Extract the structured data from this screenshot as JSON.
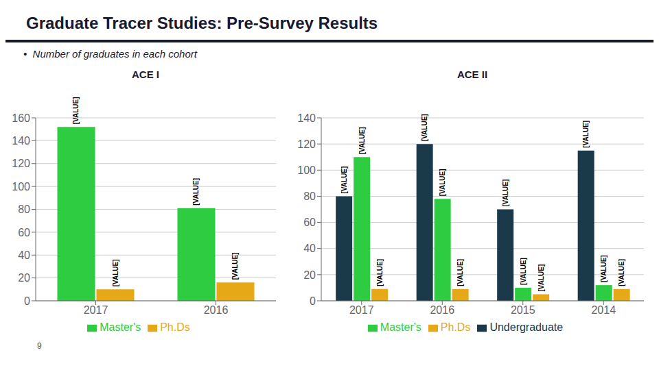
{
  "title": "Graduate Tracer Studies: Pre-Survey Results",
  "subtitle": "•  Number of graduates in each cohort",
  "annotations": [
    "9"
  ],
  "chart_data": [
    {
      "type": "bar",
      "title": "ACE I",
      "categories": [
        "2017",
        "2016"
      ],
      "series": [
        {
          "name": "Master's",
          "color": "#2ecc40",
          "values": [
            152,
            81
          ],
          "value_labels": [
            "[VALUE]",
            "[VALUE]"
          ]
        },
        {
          "name": "Ph.Ds",
          "color": "#e6a817",
          "values": [
            10,
            16
          ],
          "value_labels": [
            "[VALUE]",
            "[VALUE]"
          ]
        }
      ],
      "ylim": [
        0,
        160
      ],
      "yticks": [
        0,
        20,
        40,
        60,
        80,
        100,
        120,
        140,
        160
      ],
      "grid": true,
      "legend": "bottom",
      "data_labels": true
    },
    {
      "type": "bar",
      "title": "ACE II",
      "categories": [
        "2017",
        "2016",
        "2015",
        "2014"
      ],
      "series": [
        {
          "name": "Undergraduate",
          "color": "#1a3a4a",
          "values": [
            80,
            120,
            70,
            115
          ],
          "value_labels": [
            "[VALUE]",
            "[VALUE]",
            "[VALUE]",
            "[VALUE]"
          ]
        },
        {
          "name": "Master's",
          "color": "#2ecc40",
          "values": [
            110,
            78,
            10,
            12
          ],
          "value_labels": [
            "[VALUE]",
            "[VALUE]",
            "[VALUE]",
            "[VALUE]"
          ]
        },
        {
          "name": "Ph.Ds",
          "color": "#e6a817",
          "values": [
            9,
            9,
            5,
            9
          ],
          "value_labels": [
            "[VALUE]",
            "[VALUE]",
            "[VALUE]",
            "[VALUE]"
          ]
        }
      ],
      "ylim": [
        0,
        140
      ],
      "yticks": [
        0,
        20,
        40,
        60,
        80,
        100,
        120,
        140
      ],
      "grid": true,
      "legend": "bottom",
      "data_labels": true
    }
  ]
}
